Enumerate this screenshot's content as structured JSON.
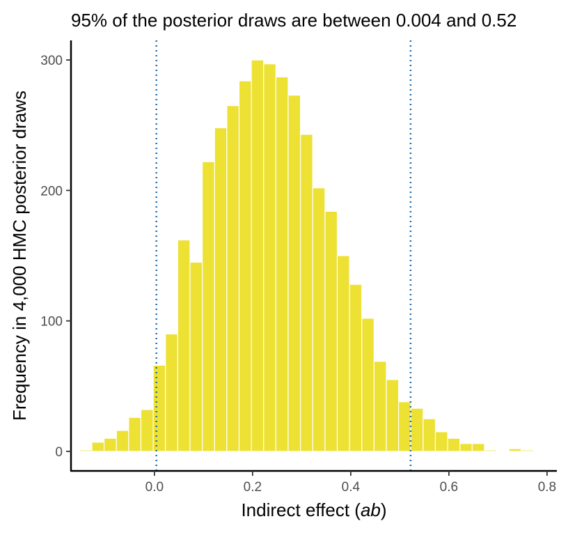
{
  "chart_data": {
    "type": "bar",
    "title": "95% of the posterior draws are between 0.004 and 0.52",
    "xlabel_prefix": "Indirect effect (",
    "xlabel_italic": "ab",
    "xlabel_suffix": ")",
    "ylabel": "Frequency in 4,000 HMC posterior draws",
    "xlim": [
      -0.17,
      0.82
    ],
    "ylim": [
      -15,
      315
    ],
    "x_ticks": [
      0.0,
      0.2,
      0.4,
      0.6,
      0.8
    ],
    "x_tick_labels": [
      "0.0",
      "0.2",
      "0.4",
      "0.6",
      "0.8"
    ],
    "y_ticks": [
      0,
      100,
      200,
      300
    ],
    "y_tick_labels": [
      "0",
      "100",
      "200",
      "300"
    ],
    "bin_width": 0.025,
    "bin_centers": [
      -0.14,
      -0.115,
      -0.09,
      -0.065,
      -0.04,
      -0.015,
      0.01,
      0.035,
      0.06,
      0.085,
      0.11,
      0.135,
      0.16,
      0.185,
      0.21,
      0.235,
      0.26,
      0.285,
      0.31,
      0.335,
      0.36,
      0.385,
      0.41,
      0.435,
      0.46,
      0.485,
      0.51,
      0.535,
      0.56,
      0.585,
      0.61,
      0.635,
      0.66,
      0.685,
      0.71,
      0.735,
      0.76
    ],
    "values": [
      1,
      7,
      10,
      16,
      26,
      32,
      66,
      90,
      162,
      145,
      222,
      248,
      265,
      284,
      300,
      297,
      287,
      273,
      243,
      202,
      184,
      150,
      128,
      102,
      69,
      55,
      38,
      33,
      25,
      15,
      10,
      6,
      6,
      1,
      0,
      2,
      1
    ],
    "intervals": [
      0.004,
      0.522
    ],
    "bar_color": "#EDE133",
    "bar_edge_color": "#ffffff",
    "interval_line_color": "#1F6CAF",
    "grid": false
  }
}
